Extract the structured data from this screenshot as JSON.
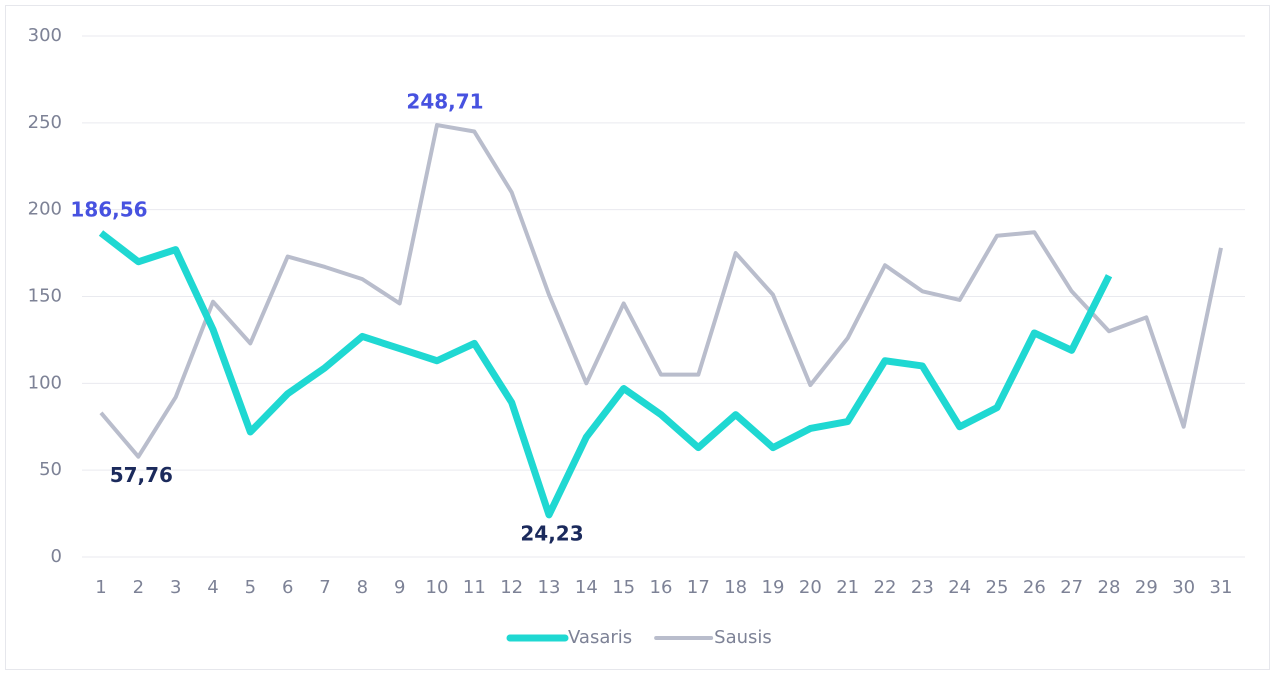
{
  "chart_data": {
    "type": "line",
    "x": [
      1,
      2,
      3,
      4,
      5,
      6,
      7,
      8,
      9,
      10,
      11,
      12,
      13,
      14,
      15,
      16,
      17,
      18,
      19,
      20,
      21,
      22,
      23,
      24,
      25,
      26,
      27,
      28,
      29,
      30,
      31
    ],
    "series": [
      {
        "name": "Vasaris",
        "color": "#1fd8d2",
        "values": [
          186.56,
          170,
          177,
          131,
          72,
          94,
          109,
          127,
          120,
          113,
          123,
          89,
          24.23,
          69,
          97,
          82,
          63,
          82,
          63,
          74,
          78,
          113,
          110,
          75,
          86,
          129,
          119,
          162,
          null,
          null,
          null
        ],
        "value_labels": [
          "186,56",
          null,
          null,
          null,
          null,
          null,
          null,
          null,
          null,
          null,
          null,
          null,
          "24,23",
          null,
          null,
          null,
          null,
          null,
          null,
          null,
          null,
          null,
          null,
          null,
          null,
          null,
          null,
          null,
          null,
          null,
          null
        ]
      },
      {
        "name": "Sausis",
        "color": "#b9bdcc",
        "values": [
          83,
          57.76,
          92,
          147,
          123,
          173,
          167,
          160,
          146,
          248.71,
          245,
          210,
          151,
          100,
          146,
          105,
          105,
          175,
          151,
          99,
          126,
          168,
          153,
          148,
          185,
          187,
          153,
          130,
          138,
          75,
          178
        ],
        "value_labels": [
          null,
          "57,76",
          null,
          null,
          null,
          null,
          null,
          null,
          null,
          "248,71",
          null,
          null,
          null,
          null,
          null,
          null,
          null,
          null,
          null,
          null,
          null,
          null,
          null,
          null,
          null,
          null,
          null,
          null,
          null,
          null,
          null
        ]
      }
    ],
    "ylim": [
      0,
      300
    ],
    "yticks": [
      0,
      50,
      100,
      150,
      200,
      250,
      300
    ],
    "grid": true,
    "legend": "bottom"
  }
}
